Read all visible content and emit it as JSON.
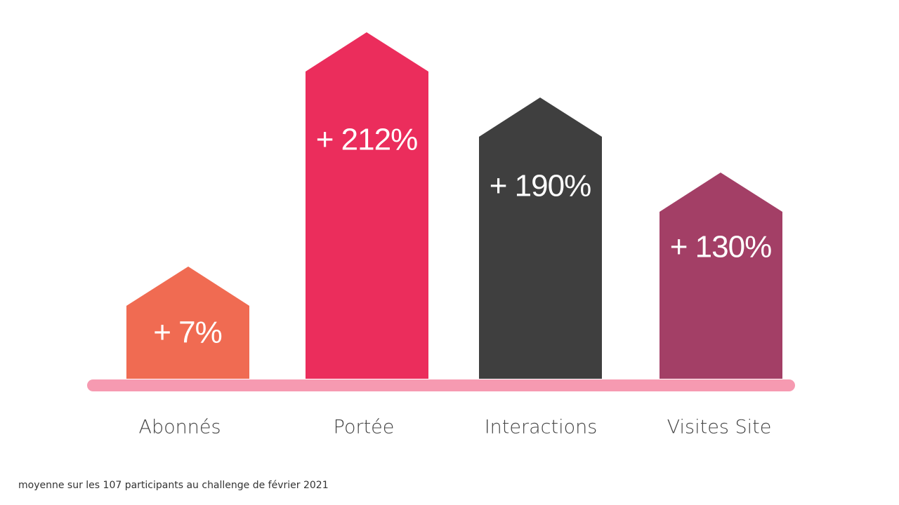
{
  "items": [
    {
      "label": "Abonnés",
      "value": "+ 7%"
    },
    {
      "label": "Portée",
      "value": "+ 212%"
    },
    {
      "label": "Interactions",
      "value": "+ 190%"
    },
    {
      "label": "Visites Site",
      "value": "+ 130%"
    }
  ],
  "footnote": "moyenne sur les 107 participants au challenge de février 2021"
}
